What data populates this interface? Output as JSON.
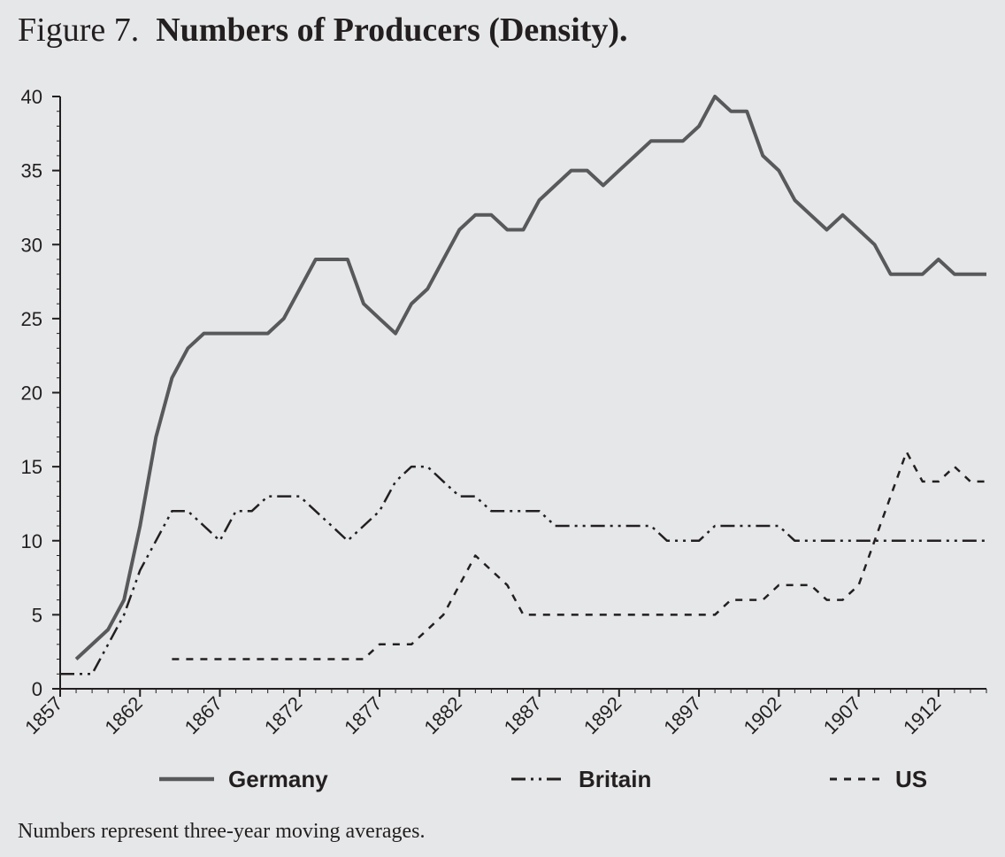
{
  "figure": {
    "label": "Figure 7.",
    "title": "Numbers of Producers (Density).",
    "footnote": "Numbers represent three-year moving averages."
  },
  "chart_data": {
    "type": "line",
    "title": "Numbers of Producers (Density).",
    "xlabel": "",
    "ylabel": "",
    "xlim": [
      1857,
      1915
    ],
    "ylim": [
      0,
      40
    ],
    "x_ticks": [
      1857,
      1862,
      1867,
      1872,
      1877,
      1882,
      1887,
      1892,
      1897,
      1902,
      1907,
      1912
    ],
    "y_ticks": [
      0,
      5,
      10,
      15,
      20,
      25,
      30,
      35,
      40
    ],
    "grid": false,
    "legend_position": "bottom",
    "series": [
      {
        "name": "Germany",
        "style": "solid",
        "color": "#58595b",
        "x": [
          1858,
          1860,
          1861,
          1862,
          1863,
          1864,
          1865,
          1866,
          1867,
          1868,
          1869,
          1870,
          1871,
          1872,
          1873,
          1874,
          1875,
          1876,
          1877,
          1878,
          1879,
          1880,
          1881,
          1882,
          1883,
          1884,
          1885,
          1886,
          1887,
          1888,
          1889,
          1890,
          1891,
          1892,
          1893,
          1894,
          1895,
          1896,
          1897,
          1898,
          1899,
          1900,
          1901,
          1902,
          1903,
          1904,
          1905,
          1906,
          1907,
          1908,
          1909,
          1910,
          1911,
          1912,
          1913,
          1914,
          1915
        ],
        "y": [
          2,
          4,
          6,
          11,
          17,
          21,
          23,
          24,
          24,
          24,
          24,
          24,
          25,
          27,
          29,
          29,
          29,
          26,
          25,
          24,
          26,
          27,
          29,
          31,
          32,
          32,
          31,
          31,
          33,
          34,
          35,
          35,
          34,
          35,
          36,
          37,
          37,
          37,
          38,
          40,
          39,
          39,
          36,
          35,
          33,
          32,
          31,
          32,
          31,
          30,
          28,
          28,
          28,
          29,
          28,
          28,
          28
        ]
      },
      {
        "name": "Britain",
        "style": "dash-dot-dot",
        "color": "#231f20",
        "x": [
          1857,
          1858,
          1859,
          1860,
          1861,
          1862,
          1863,
          1864,
          1865,
          1866,
          1867,
          1868,
          1869,
          1870,
          1871,
          1872,
          1873,
          1874,
          1875,
          1876,
          1877,
          1878,
          1879,
          1880,
          1881,
          1882,
          1883,
          1884,
          1885,
          1886,
          1887,
          1888,
          1889,
          1890,
          1891,
          1892,
          1893,
          1894,
          1895,
          1896,
          1897,
          1898,
          1899,
          1900,
          1901,
          1902,
          1903,
          1904,
          1905,
          1906,
          1907,
          1908,
          1909,
          1910,
          1911,
          1912,
          1913,
          1914,
          1915
        ],
        "y": [
          1,
          1,
          1,
          3,
          5,
          8,
          10,
          12,
          12,
          11,
          10,
          12,
          12,
          13,
          13,
          13,
          12,
          11,
          10,
          11,
          12,
          14,
          15,
          15,
          14,
          13,
          13,
          12,
          12,
          12,
          12,
          11,
          11,
          11,
          11,
          11,
          11,
          11,
          10,
          10,
          10,
          11,
          11,
          11,
          11,
          11,
          10,
          10,
          10,
          10,
          10,
          10,
          10,
          10,
          10,
          10,
          10,
          10,
          10
        ]
      },
      {
        "name": "US",
        "style": "dashed",
        "color": "#231f20",
        "x": [
          1864,
          1865,
          1866,
          1867,
          1868,
          1869,
          1870,
          1871,
          1872,
          1873,
          1874,
          1875,
          1876,
          1877,
          1878,
          1879,
          1880,
          1881,
          1882,
          1883,
          1884,
          1885,
          1886,
          1887,
          1888,
          1889,
          1890,
          1891,
          1892,
          1893,
          1894,
          1895,
          1896,
          1897,
          1898,
          1899,
          1900,
          1901,
          1902,
          1903,
          1904,
          1905,
          1906,
          1907,
          1908,
          1909,
          1910,
          1911,
          1912,
          1913,
          1914,
          1915
        ],
        "y": [
          2,
          2,
          2,
          2,
          2,
          2,
          2,
          2,
          2,
          2,
          2,
          2,
          2,
          3,
          3,
          3,
          4,
          5,
          7,
          9,
          8,
          7,
          5,
          5,
          5,
          5,
          5,
          5,
          5,
          5,
          5,
          5,
          5,
          5,
          5,
          6,
          6,
          6,
          7,
          7,
          7,
          6,
          6,
          7,
          10,
          13,
          16,
          14,
          14,
          15,
          14,
          14
        ]
      }
    ]
  }
}
